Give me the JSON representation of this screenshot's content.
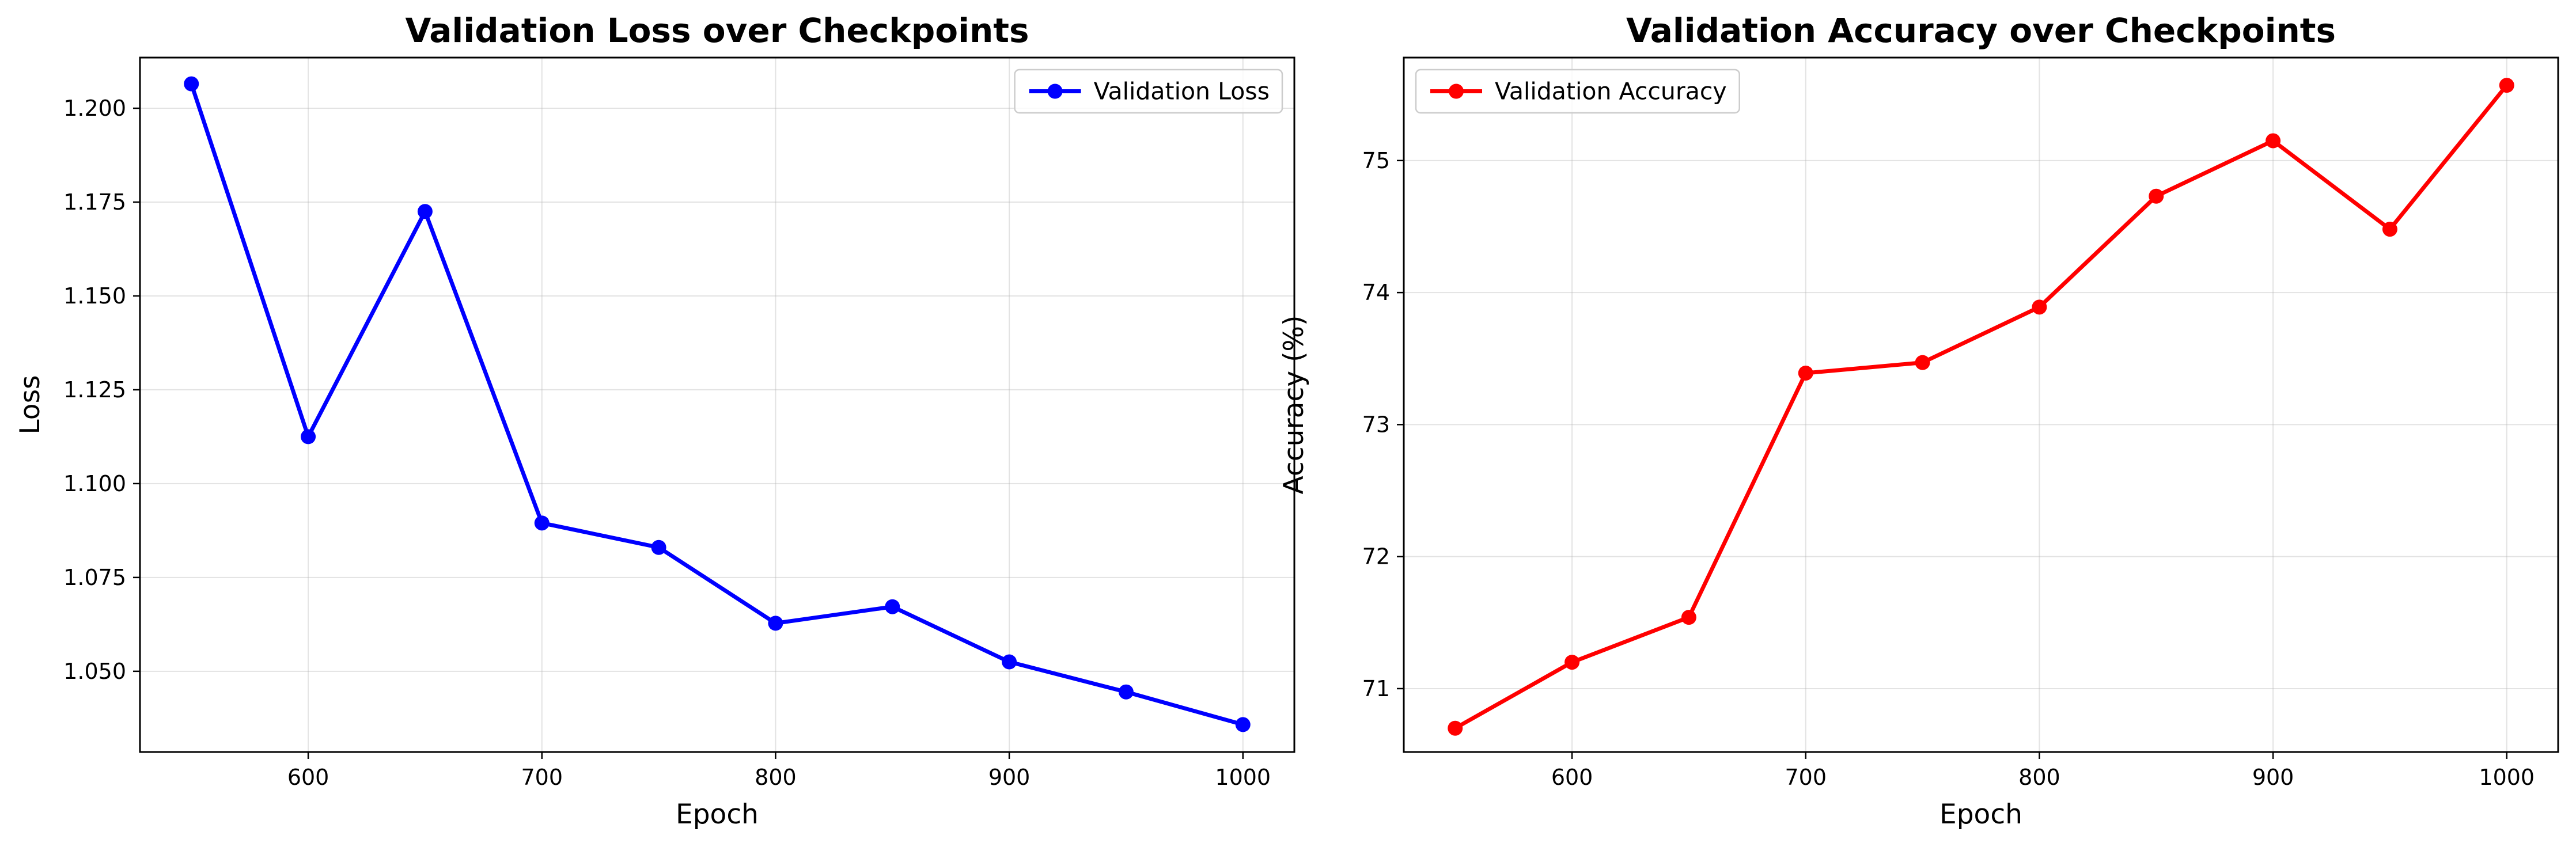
{
  "chart_data": [
    {
      "type": "line",
      "title": "Validation Loss over Checkpoints",
      "xlabel": "Epoch",
      "ylabel": "Loss",
      "xlim": [
        528,
        1022
      ],
      "ylim": [
        1.0285,
        1.2135
      ],
      "xticks": [
        600,
        700,
        800,
        900,
        1000
      ],
      "xtick_labels": [
        "600",
        "700",
        "800",
        "900",
        "1000"
      ],
      "yticks": [
        1.05,
        1.075,
        1.1,
        1.125,
        1.15,
        1.175,
        1.2
      ],
      "ytick_labels": [
        "1.050",
        "1.075",
        "1.100",
        "1.125",
        "1.150",
        "1.175",
        "1.200"
      ],
      "grid": true,
      "legend_position": "top-right",
      "series": [
        {
          "name": "Validation Loss",
          "color": "#0000ff",
          "marker": "circle",
          "x": [
            550,
            600,
            650,
            700,
            750,
            800,
            850,
            900,
            950,
            1000
          ],
          "y": [
            1.2065,
            1.1125,
            1.1725,
            1.0895,
            1.083,
            1.0628,
            1.0672,
            1.0525,
            1.0445,
            1.0358
          ]
        }
      ]
    },
    {
      "type": "line",
      "title": "Validation Accuracy over Checkpoints",
      "xlabel": "Epoch",
      "ylabel": "Accuracy (%)",
      "xlim": [
        528,
        1022
      ],
      "ylim": [
        70.52,
        75.78
      ],
      "xticks": [
        600,
        700,
        800,
        900,
        1000
      ],
      "xtick_labels": [
        "600",
        "700",
        "800",
        "900",
        "1000"
      ],
      "yticks": [
        71,
        72,
        73,
        74,
        75
      ],
      "ytick_labels": [
        "71",
        "72",
        "73",
        "74",
        "75"
      ],
      "grid": true,
      "legend_position": "top-left",
      "series": [
        {
          "name": "Validation Accuracy",
          "color": "#ff0000",
          "marker": "circle",
          "x": [
            550,
            600,
            650,
            700,
            750,
            800,
            850,
            900,
            950,
            1000
          ],
          "y": [
            70.7,
            71.2,
            71.54,
            73.39,
            73.47,
            73.89,
            74.73,
            75.15,
            74.48,
            75.57
          ]
        }
      ]
    }
  ]
}
